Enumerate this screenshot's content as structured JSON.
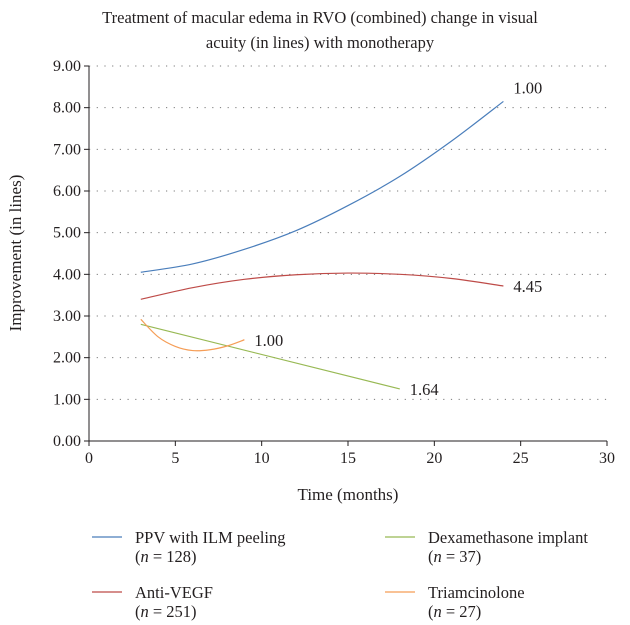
{
  "chart_data": {
    "type": "line",
    "title_lines": [
      "Treatment of macular edema in RVO (combined) change in visual",
      "acuity (in lines) with monotherapy"
    ],
    "xlabel": "Time (months)",
    "ylabel": "Improvement (in lines)",
    "xlim": [
      0,
      30
    ],
    "ylim": [
      0,
      9
    ],
    "xticks": [
      "0",
      "5",
      "10",
      "15",
      "20",
      "25",
      "30"
    ],
    "yticks": [
      "0.00",
      "1.00",
      "2.00",
      "3.00",
      "4.00",
      "5.00",
      "6.00",
      "7.00",
      "8.00",
      "9.00"
    ],
    "grid": "horizontal-dotted",
    "legend_position": "bottom",
    "series": [
      {
        "name": "PPV with ILM peeling",
        "n_label": "128",
        "color": "#4a7ebb",
        "end_label": "1.00",
        "x": [
          3,
          6,
          9,
          12,
          15,
          18,
          21,
          24
        ],
        "y": [
          4.05,
          4.25,
          4.6,
          5.05,
          5.65,
          6.35,
          7.2,
          8.15
        ]
      },
      {
        "name": "Anti-VEGF",
        "n_label": "251",
        "color": "#be4b48",
        "end_label": "4.45",
        "x": [
          3,
          6,
          9,
          12,
          15,
          18,
          21,
          24
        ],
        "y": [
          3.4,
          3.68,
          3.88,
          3.99,
          4.03,
          4.0,
          3.9,
          3.72
        ]
      },
      {
        "name": "Dexamethasone implant",
        "n_label": "37",
        "color": "#98b954",
        "end_label": "1.64",
        "x": [
          3,
          18
        ],
        "y": [
          2.8,
          1.25
        ]
      },
      {
        "name": "Triamcinolone",
        "n_label": "27",
        "color": "#f59d56",
        "end_label": "1.00",
        "x": [
          3,
          4,
          5,
          6,
          7,
          8,
          9
        ],
        "y": [
          2.92,
          2.5,
          2.27,
          2.17,
          2.19,
          2.28,
          2.43
        ]
      }
    ]
  }
}
